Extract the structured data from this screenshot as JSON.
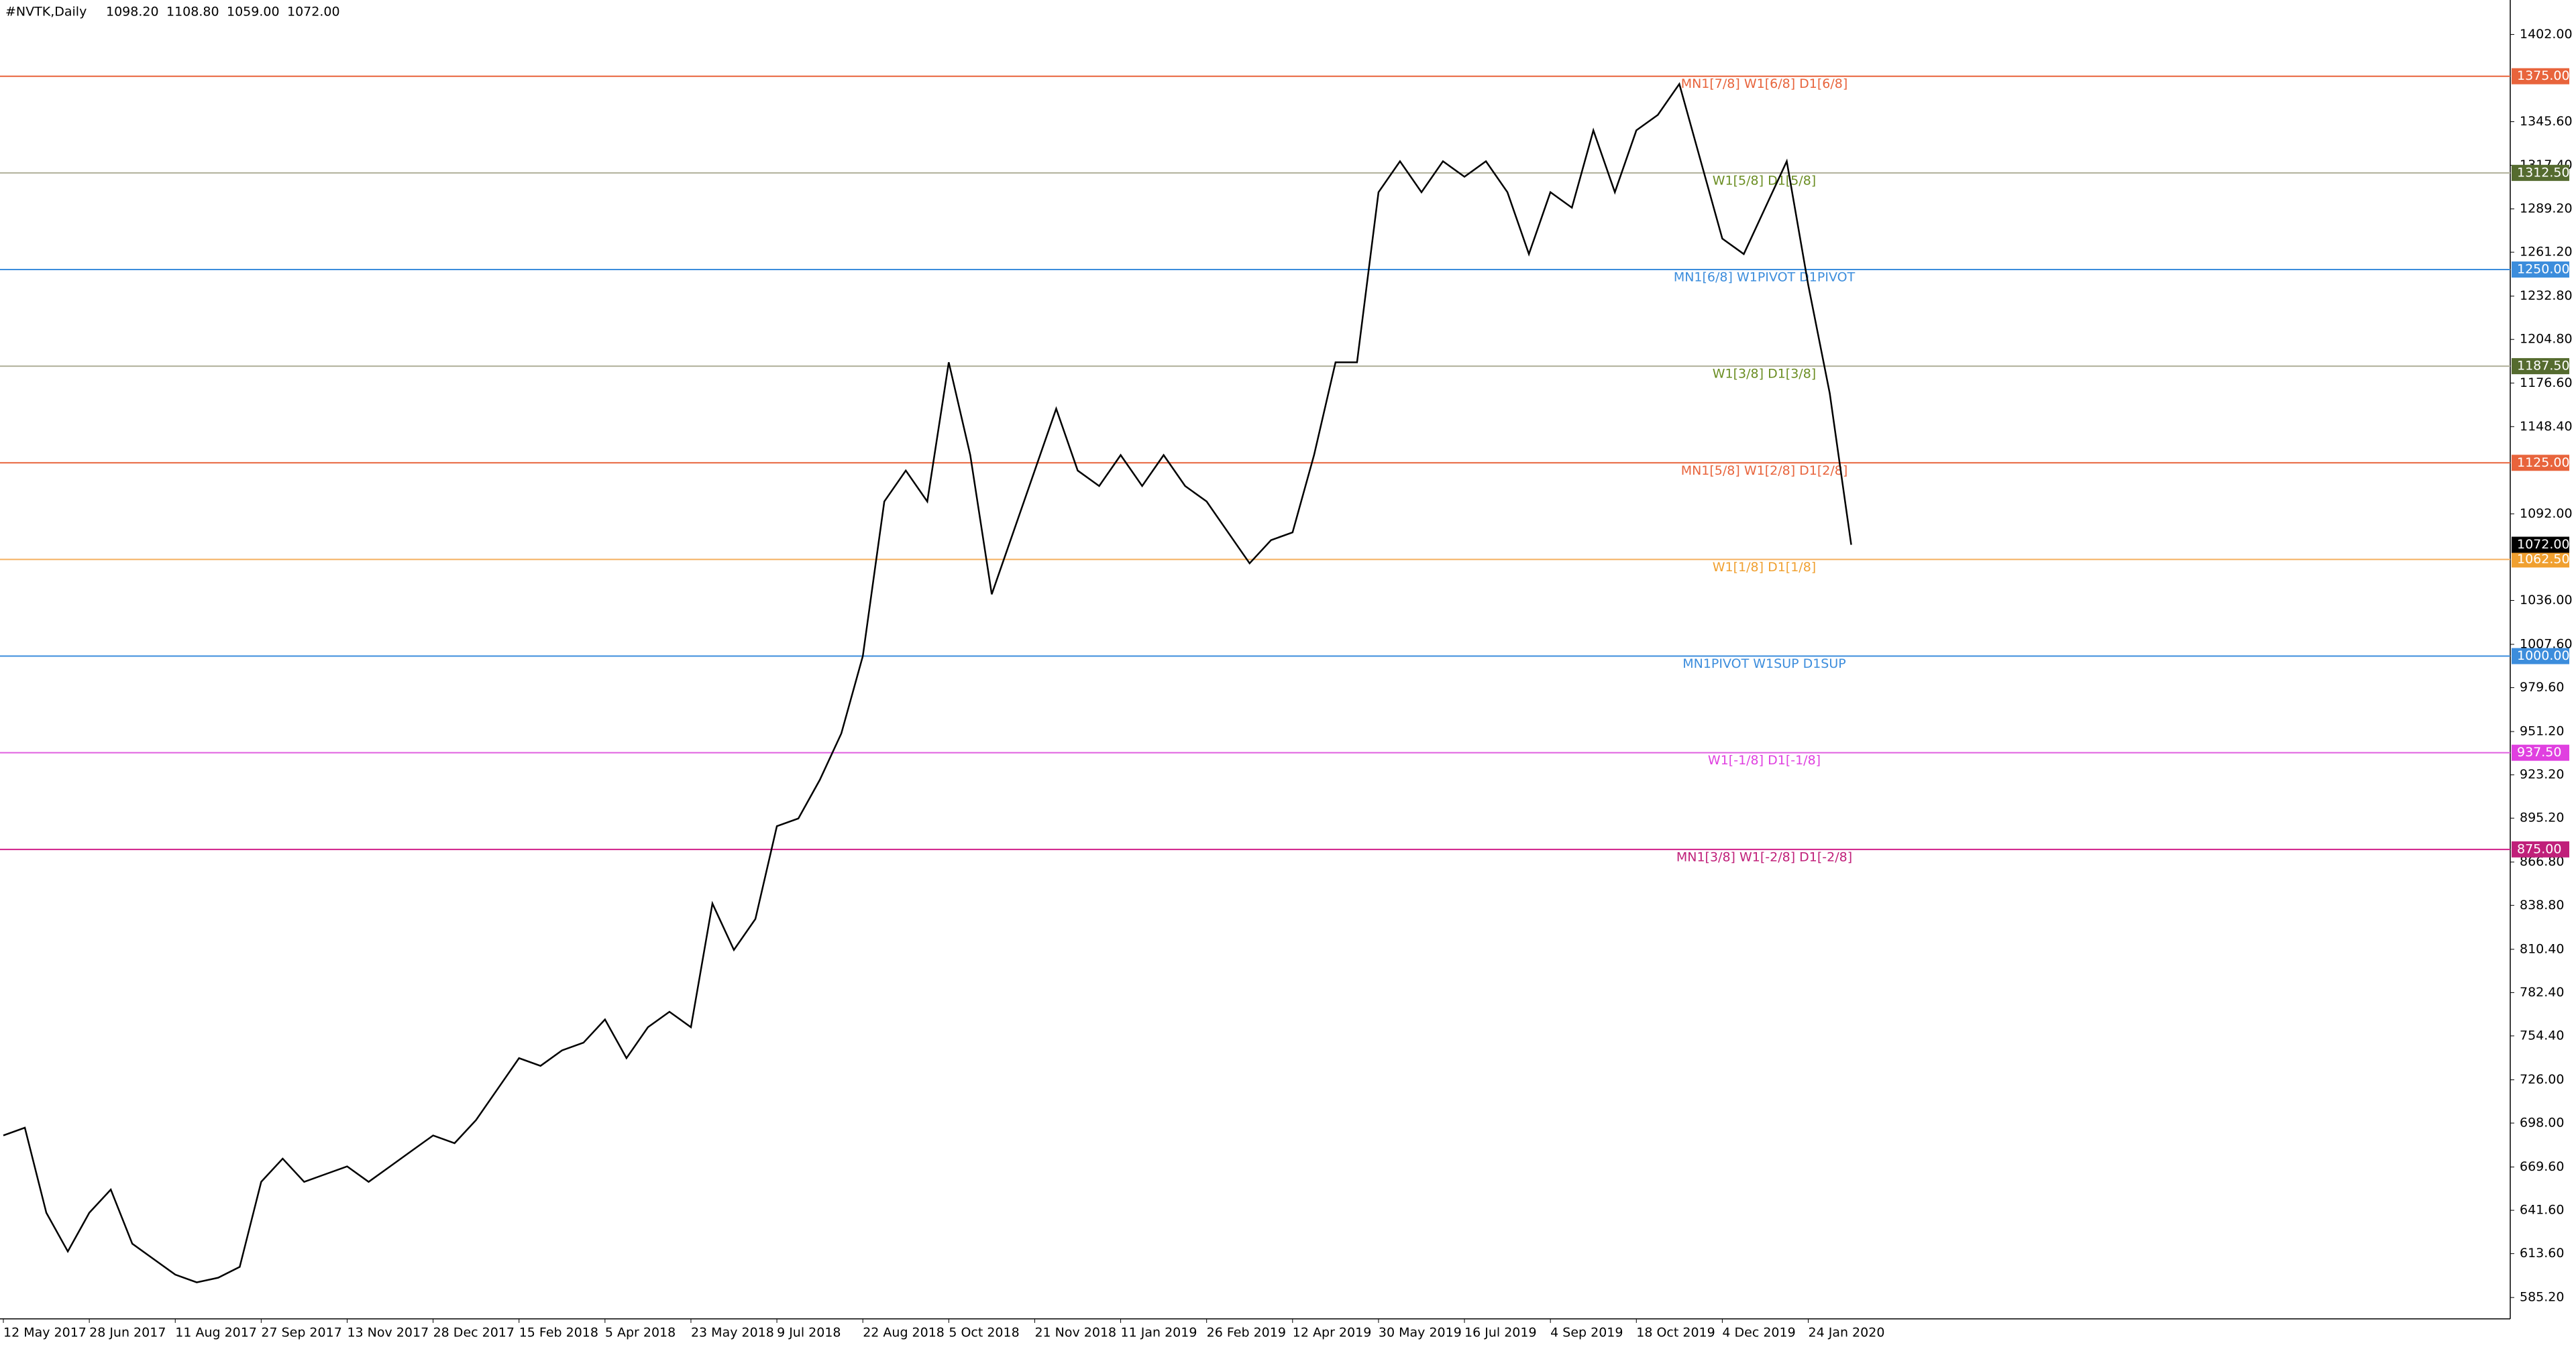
{
  "chart_data": {
    "type": "line",
    "header": "#NVTK,Daily",
    "ohlc": [
      {
        "value": 1098.2,
        "label": "1098.20"
      },
      {
        "value": 1108.8,
        "label": "1108.80"
      },
      {
        "value": 1059,
        "label": "1059.00"
      },
      {
        "value": 1072,
        "label": "1072.00"
      }
    ],
    "x_labels": [
      "12 May 2017",
      "28 Jun 2017",
      "11 Aug 2017",
      "27 Sep 2017",
      "13 Nov 2017",
      "28 Dec 2017",
      "15 Feb 2018",
      "5 Apr 2018",
      "23 May 2018",
      "9 Jul 2018",
      "22 Aug 2018",
      "5 Oct 2018",
      "21 Nov 2018",
      "11 Jan 2019",
      "26 Feb 2019",
      "12 Apr 2019",
      "30 May 2019",
      "16 Jul 2019",
      "4 Sep 2019",
      "18 Oct 2019",
      "4 Dec 2019",
      "24 Jan 2020"
    ],
    "series": [
      {
        "name": "NVTK",
        "color": "#000000",
        "values": [
          690,
          695,
          640,
          615,
          640,
          655,
          620,
          610,
          600,
          595,
          598,
          605,
          660,
          675,
          660,
          665,
          670,
          660,
          670,
          680,
          690,
          685,
          700,
          720,
          740,
          735,
          745,
          750,
          765,
          740,
          760,
          770,
          760,
          840,
          810,
          830,
          890,
          895,
          920,
          950,
          1000,
          1100,
          1120,
          1100,
          1190,
          1130,
          1040,
          1080,
          1120,
          1160,
          1120,
          1110,
          1130,
          1110,
          1130,
          1110,
          1100,
          1080,
          1060,
          1075,
          1080,
          1130,
          1190,
          1190,
          1300,
          1320,
          1300,
          1320,
          1310,
          1320,
          1300,
          1260,
          1300,
          1290,
          1340,
          1300,
          1340,
          1350,
          1370,
          1320,
          1270,
          1260,
          1290,
          1320,
          1240,
          1170,
          1072
        ]
      }
    ],
    "ylim": [
      571.4,
      1424.3
    ],
    "yticks": [
      {
        "value": 1402,
        "label": "1402.00"
      },
      {
        "value": 1345.6,
        "label": "1345.60"
      },
      {
        "value": 1317.4,
        "label": "1317.40"
      },
      {
        "value": 1289.2,
        "label": "1289.20"
      },
      {
        "value": 1261.2,
        "label": "1261.20"
      },
      {
        "value": 1232.8,
        "label": "1232.80"
      },
      {
        "value": 1204.8,
        "label": "1204.80"
      },
      {
        "value": 1176.6,
        "label": "1176.60"
      },
      {
        "value": 1148.4,
        "label": "1148.40"
      },
      {
        "value": 1092,
        "label": "1092.00"
      },
      {
        "value": 1036,
        "label": "1036.00"
      },
      {
        "value": 1007.6,
        "label": "1007.60"
      },
      {
        "value": 979.6,
        "label": "979.60"
      },
      {
        "value": 951.2,
        "label": "951.20"
      },
      {
        "value": 923.2,
        "label": "923.20"
      },
      {
        "value": 895.2,
        "label": "895.20"
      },
      {
        "value": 866.8,
        "label": "866.80"
      },
      {
        "value": 838.8,
        "label": "838.80"
      },
      {
        "value": 810.4,
        "label": "810.40"
      },
      {
        "value": 782.4,
        "label": "782.40"
      },
      {
        "value": 754.4,
        "label": "754.40"
      },
      {
        "value": 726,
        "label": "726.00"
      },
      {
        "value": 698,
        "label": "698.00"
      },
      {
        "value": 669.6,
        "label": "669.60"
      },
      {
        "value": 641.6,
        "label": "641.60"
      },
      {
        "value": 613.6,
        "label": "613.60"
      },
      {
        "value": 585.2,
        "label": "585.20"
      }
    ],
    "levels": [
      {
        "value": 1375,
        "label": "1375.00",
        "text": "MN1[7/8] W1[6/8] D1[6/8]",
        "color": "#e8643c",
        "text_color": "#e8643c",
        "box": "#e8643c"
      },
      {
        "value": 1312.5,
        "label": "1312.50",
        "text": "W1[5/8] D1[5/8]",
        "color": "#b0b09a",
        "text_color": "#6b8e23",
        "box": "#556b2f"
      },
      {
        "value": 1250,
        "label": "1250.00",
        "text": "MN1[6/8] W1PIVOT D1PIVOT",
        "color": "#3c8ddc",
        "text_color": "#3c8ddc",
        "box": "#3c8ddc"
      },
      {
        "value": 1187.5,
        "label": "1187.50",
        "text": "W1[3/8] D1[3/8]",
        "color": "#b0b09a",
        "text_color": "#6b8e23",
        "box": "#556b2f"
      },
      {
        "value": 1125,
        "label": "1125.00",
        "text": "MN1[5/8] W1[2/8] D1[2/8]",
        "color": "#e8643c",
        "text_color": "#e8643c",
        "box": "#e8643c"
      },
      {
        "value": 1062.5,
        "label": "1062.50",
        "text": "W1[1/8] D1[1/8]",
        "color": "#f5b060",
        "text_color": "#f0a030",
        "box": "#f0a030"
      },
      {
        "value": 1000,
        "label": "1000.00",
        "text": "MN1PIVOT W1SUP D1SUP",
        "color": "#3c8ddc",
        "text_color": "#3c8ddc",
        "box": "#3c8ddc"
      },
      {
        "value": 937.5,
        "label": "937.50",
        "text": "W1[-1/8] D1[-1/8]",
        "color": "#e060e0",
        "text_color": "#e040e0",
        "box": "#e040e0"
      },
      {
        "value": 875,
        "label": "875.00",
        "text": "MN1[3/8] W1[-2/8] D1[-2/8]",
        "color": "#d0208a",
        "text_color": "#c0207a",
        "box": "#c0207a"
      }
    ],
    "last": {
      "value": 1072,
      "label": "1072.00",
      "box": "#000000"
    }
  }
}
